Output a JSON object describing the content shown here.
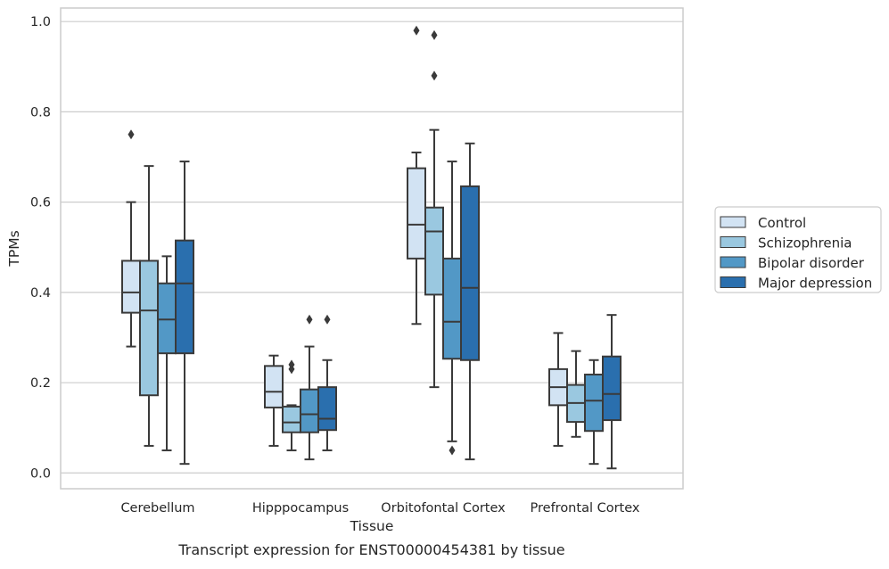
{
  "chart_data": {
    "type": "box",
    "title": "",
    "caption": "Transcript expression for ENST00000454381 by tissue",
    "xlabel": "Tissue",
    "ylabel": "TPMs",
    "ylim": [
      -0.035,
      1.03
    ],
    "yticks": [
      0.0,
      0.2,
      0.4,
      0.6,
      0.8,
      1.0
    ],
    "ytick_labels": [
      "0.0",
      "0.2",
      "0.4",
      "0.6",
      "0.8",
      "1.0"
    ],
    "grid": "horizontal",
    "legend_position": "right",
    "categories": [
      "Cerebellum",
      "Hipppocampus",
      "Orbitofontal Cortex",
      "Prefrontal Cortex"
    ],
    "series": [
      {
        "name": "Control",
        "color": "#d2e3f3",
        "boxes": [
          {
            "whislo": 0.28,
            "q1": 0.355,
            "med": 0.4,
            "q3": 0.47,
            "whishi": 0.6,
            "fliers": [
              0.75
            ]
          },
          {
            "whislo": 0.06,
            "q1": 0.145,
            "med": 0.18,
            "q3": 0.237,
            "whishi": 0.26,
            "fliers": []
          },
          {
            "whislo": 0.33,
            "q1": 0.475,
            "med": 0.55,
            "q3": 0.675,
            "whishi": 0.71,
            "fliers": [
              0.98
            ]
          },
          {
            "whislo": 0.06,
            "q1": 0.15,
            "med": 0.19,
            "q3": 0.23,
            "whishi": 0.31,
            "fliers": []
          }
        ]
      },
      {
        "name": "Schizophrenia",
        "color": "#9ac8e0",
        "boxes": [
          {
            "whislo": 0.06,
            "q1": 0.172,
            "med": 0.36,
            "q3": 0.47,
            "whishi": 0.68,
            "fliers": []
          },
          {
            "whislo": 0.05,
            "q1": 0.09,
            "med": 0.112,
            "q3": 0.147,
            "whishi": 0.15,
            "fliers": [
              0.23,
              0.24
            ]
          },
          {
            "whislo": 0.19,
            "q1": 0.395,
            "med": 0.535,
            "q3": 0.588,
            "whishi": 0.76,
            "fliers": [
              0.97,
              0.88
            ]
          },
          {
            "whislo": 0.08,
            "q1": 0.113,
            "med": 0.155,
            "q3": 0.195,
            "whishi": 0.27,
            "fliers": []
          }
        ]
      },
      {
        "name": "Bipolar disorder",
        "color": "#5298c6",
        "boxes": [
          {
            "whislo": 0.05,
            "q1": 0.265,
            "med": 0.34,
            "q3": 0.42,
            "whishi": 0.48,
            "fliers": []
          },
          {
            "whislo": 0.03,
            "q1": 0.09,
            "med": 0.13,
            "q3": 0.185,
            "whishi": 0.28,
            "fliers": [
              0.34
            ]
          },
          {
            "whislo": 0.07,
            "q1": 0.253,
            "med": 0.335,
            "q3": 0.475,
            "whishi": 0.69,
            "fliers": [
              0.05
            ]
          },
          {
            "whislo": 0.02,
            "q1": 0.093,
            "med": 0.16,
            "q3": 0.218,
            "whishi": 0.25,
            "fliers": []
          }
        ]
      },
      {
        "name": "Major depression",
        "color": "#2a6fae",
        "boxes": [
          {
            "whislo": 0.02,
            "q1": 0.265,
            "med": 0.42,
            "q3": 0.515,
            "whishi": 0.69,
            "fliers": []
          },
          {
            "whislo": 0.05,
            "q1": 0.095,
            "med": 0.12,
            "q3": 0.19,
            "whishi": 0.25,
            "fliers": [
              0.34
            ]
          },
          {
            "whislo": 0.03,
            "q1": 0.25,
            "med": 0.41,
            "q3": 0.635,
            "whishi": 0.73,
            "fliers": []
          },
          {
            "whislo": 0.01,
            "q1": 0.117,
            "med": 0.175,
            "q3": 0.258,
            "whishi": 0.35,
            "fliers": []
          }
        ]
      }
    ]
  }
}
